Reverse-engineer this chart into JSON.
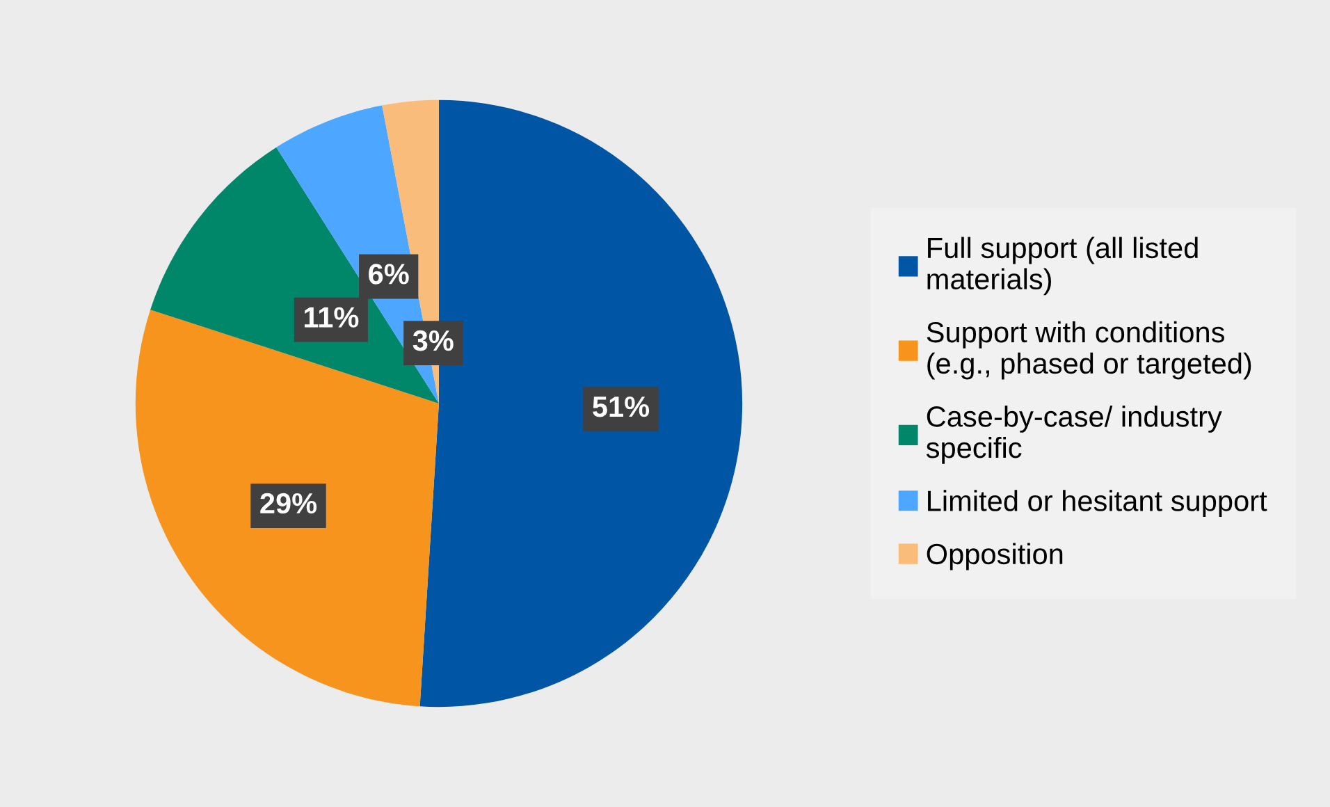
{
  "chart_data": {
    "type": "pie",
    "categories": [
      "Full support (all listed materials)",
      "Support with conditions (e.g., phased or targeted)",
      "Case-by-case/ industry specific",
      "Limited or hesitant support",
      "Opposition"
    ],
    "values": [
      51,
      29,
      11,
      6,
      3
    ],
    "value_labels": [
      "51%",
      "29%",
      "11%",
      "6%",
      "3%"
    ],
    "colors": [
      "#0055a4",
      "#f7941d",
      "#00876a",
      "#4da6ff",
      "#f9bc7a"
    ],
    "legend": "right"
  }
}
